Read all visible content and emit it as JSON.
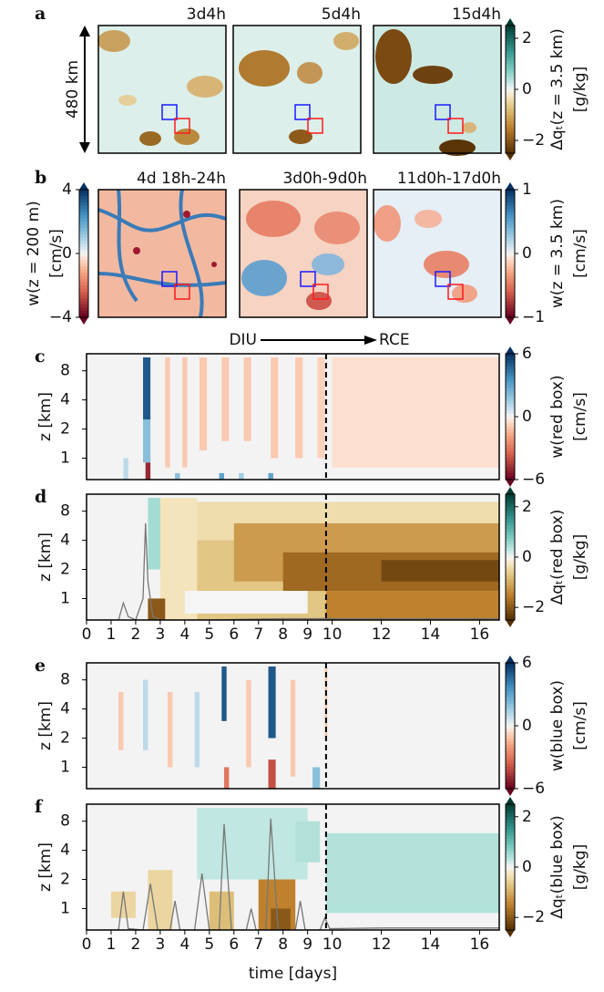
{
  "chart_data": [
    {
      "type": "map",
      "panel": "a",
      "titles": [
        "3d4h",
        "5d4h",
        "15d4h"
      ],
      "scale_label": "480 km",
      "colorbars": [
        {
          "side": "right",
          "colormap": "BrBG",
          "lim": [
            -2.5,
            2.5
          ],
          "ticks": [
            2,
            0,
            {
              "value": -2,
              "label": "−2"
            }
          ],
          "label": "Δqₜ(z = 3.5 km)",
          "units": "[g/kg]"
        }
      ]
    },
    {
      "type": "map",
      "panel": "b",
      "titles": [
        "4d 18h-24h",
        "3d0h-9d0h",
        "11d0h-17d0h"
      ],
      "colorbars": [
        {
          "side": "left",
          "colormap": "RdBu",
          "lim": [
            -4,
            4
          ],
          "ticks": [
            4,
            0,
            {
              "value": -4,
              "label": "−4"
            }
          ],
          "label": "w(z = 200 m)",
          "units": "[cm/s]"
        },
        {
          "side": "right",
          "colormap": "RdBu",
          "lim": [
            -1,
            1
          ],
          "ticks": [
            1,
            0,
            {
              "value": -1,
              "label": "−1"
            }
          ],
          "label": "w(z = 3.5 km)",
          "units": "[cm/s]"
        }
      ],
      "annotations": [
        "DIU",
        "RCE"
      ]
    },
    {
      "type": "heatmap",
      "panel": "c",
      "ylabel": "z [km]",
      "yscale": "log",
      "ylim": [
        0.6,
        12
      ],
      "yticks": [
        1,
        2,
        4,
        8
      ],
      "xlim": [
        0,
        16.8
      ],
      "vline": 9.75,
      "colorbar": {
        "colormap": "RdBu",
        "lim": [
          -6,
          6
        ],
        "ticks": [
          6,
          0,
          {
            "value": -6,
            "label": "−6"
          }
        ],
        "label": "w(red box)",
        "units": "[cm/s]"
      },
      "cells": [
        {
          "t": [
            10,
            16.8
          ],
          "z": [
            0.8,
            11
          ],
          "value": -0.5
        },
        {
          "t": [
            3.2,
            3.4
          ],
          "z": [
            0.8,
            11
          ],
          "value": -1
        },
        {
          "t": [
            3.9,
            4.1
          ],
          "z": [
            0.8,
            11
          ],
          "value": -1
        },
        {
          "t": [
            4.6,
            4.9
          ],
          "z": [
            1.2,
            11
          ],
          "value": -1
        },
        {
          "t": [
            5.5,
            5.8
          ],
          "z": [
            1.5,
            11
          ],
          "value": -1
        },
        {
          "t": [
            6.4,
            6.7
          ],
          "z": [
            1.5,
            11
          ],
          "value": -1
        },
        {
          "t": [
            7.5,
            7.8
          ],
          "z": [
            1,
            11
          ],
          "value": -1
        },
        {
          "t": [
            8.5,
            8.8
          ],
          "z": [
            1,
            11
          ],
          "value": -1
        },
        {
          "t": [
            9.4,
            9.7
          ],
          "z": [
            1,
            11
          ],
          "value": -0.8
        },
        {
          "t": [
            2.3,
            2.6
          ],
          "z": [
            2.5,
            11
          ],
          "value": 5
        },
        {
          "t": [
            2.3,
            2.6
          ],
          "z": [
            0.9,
            2.5
          ],
          "value": 2
        },
        {
          "t": [
            2.4,
            2.6
          ],
          "z": [
            0.5,
            0.9
          ],
          "value": -5
        },
        {
          "t": [
            3.6,
            3.8
          ],
          "z": [
            0.5,
            0.7
          ],
          "value": 2
        },
        {
          "t": [
            5.4,
            5.6
          ],
          "z": [
            0.5,
            0.7
          ],
          "value": 3
        },
        {
          "t": [
            6.2,
            6.4
          ],
          "z": [
            0.5,
            0.7
          ],
          "value": 1.5
        },
        {
          "t": [
            7.4,
            7.6
          ],
          "z": [
            0.5,
            0.7
          ],
          "value": 3
        },
        {
          "t": [
            1.5,
            1.7
          ],
          "z": [
            0.6,
            1
          ],
          "value": 1
        }
      ]
    },
    {
      "type": "heatmap",
      "panel": "d",
      "ylabel": "z [km]",
      "yscale": "log",
      "ylim": [
        0.6,
        12
      ],
      "yticks": [
        1,
        2,
        4,
        8
      ],
      "xlim": [
        0,
        16.8
      ],
      "xticks": [
        0,
        1,
        2,
        3,
        4,
        5,
        6,
        7,
        8,
        9,
        10,
        12,
        14,
        16
      ],
      "vline": 9.75,
      "colorbar": {
        "colormap": "BrBG",
        "lim": [
          -2.5,
          2.5
        ],
        "ticks": [
          2,
          0,
          {
            "value": -2,
            "label": "−2"
          }
        ],
        "label": "Δqₜ(red box)",
        "units": "[g/kg]"
      },
      "cells": [
        {
          "t": [
            2.5,
            3.2
          ],
          "z": [
            2,
            11
          ],
          "value": 0.5
        },
        {
          "t": [
            3,
            4.5
          ],
          "z": [
            0.5,
            11
          ],
          "value": -0.3
        },
        {
          "t": [
            4.5,
            16.8
          ],
          "z": [
            4,
            10
          ],
          "value": -0.4
        },
        {
          "t": [
            4.5,
            9.75
          ],
          "z": [
            0.5,
            4
          ],
          "value": -0.7
        },
        {
          "t": [
            6,
            16.8
          ],
          "z": [
            1.5,
            6
          ],
          "value": -1.2
        },
        {
          "t": [
            8,
            16.8
          ],
          "z": [
            1.2,
            3
          ],
          "value": -1.8
        },
        {
          "t": [
            12,
            16.8
          ],
          "z": [
            1.5,
            2.5
          ],
          "value": -2.2
        },
        {
          "t": [
            4,
            9
          ],
          "z": [
            0.7,
            1.2
          ],
          "value": 0
        },
        {
          "t": [
            9.75,
            16.8
          ],
          "z": [
            0.5,
            1.2
          ],
          "value": -1.5
        },
        {
          "t": [
            2.5,
            3.2
          ],
          "z": [
            0.5,
            1
          ],
          "value": -2
        }
      ],
      "line": {
        "color": "#777777",
        "x": [
          0.7,
          1.3,
          1.5,
          1.7,
          2.0,
          2.3,
          2.4,
          2.5,
          2.7,
          3.0,
          5,
          8,
          12,
          16.8
        ],
        "values": [
          0.6,
          0.6,
          0.9,
          0.65,
          0.6,
          1,
          6,
          1.5,
          0.65,
          0.6,
          0.6,
          0.62,
          0.62,
          0.62
        ]
      }
    },
    {
      "type": "heatmap",
      "panel": "e",
      "ylabel": "z [km]",
      "yscale": "log",
      "ylim": [
        0.6,
        12
      ],
      "yticks": [
        1,
        2,
        4,
        8
      ],
      "xlim": [
        0,
        16.8
      ],
      "vline": 9.75,
      "colorbar": {
        "colormap": "RdBu",
        "lim": [
          -6,
          6
        ],
        "ticks": [
          6,
          0,
          {
            "value": -6,
            "label": "−6"
          }
        ],
        "label": "w(blue box)",
        "units": "[cm/s]"
      },
      "cells": [
        {
          "t": [
            1.3,
            1.5
          ],
          "z": [
            1.5,
            6
          ],
          "value": -1
        },
        {
          "t": [
            2.3,
            2.5
          ],
          "z": [
            1.5,
            8
          ],
          "value": 1
        },
        {
          "t": [
            3.3,
            3.5
          ],
          "z": [
            1,
            6
          ],
          "value": -1
        },
        {
          "t": [
            4.4,
            4.6
          ],
          "z": [
            1,
            6
          ],
          "value": 1
        },
        {
          "t": [
            6.5,
            6.7
          ],
          "z": [
            1,
            8
          ],
          "value": -1
        },
        {
          "t": [
            8.3,
            8.5
          ],
          "z": [
            0.8,
            8
          ],
          "value": -1
        },
        {
          "t": [
            9.7,
            9.8
          ],
          "z": [
            2,
            11
          ],
          "value": -1
        },
        {
          "t": [
            5.5,
            5.7
          ],
          "z": [
            3,
            11
          ],
          "value": 5
        },
        {
          "t": [
            7.4,
            7.7
          ],
          "z": [
            2,
            11
          ],
          "value": 5
        },
        {
          "t": [
            7.4,
            7.7
          ],
          "z": [
            0.6,
            1.2
          ],
          "value": -4
        },
        {
          "t": [
            5.6,
            5.8
          ],
          "z": [
            0.6,
            1
          ],
          "value": -3
        },
        {
          "t": [
            9.2,
            9.5
          ],
          "z": [
            0.6,
            1
          ],
          "value": 2
        }
      ]
    },
    {
      "type": "heatmap",
      "panel": "f",
      "ylabel": "z [km]",
      "yscale": "log",
      "ylim": [
        0.6,
        12
      ],
      "yticks": [
        1,
        2,
        4,
        8
      ],
      "xlim": [
        0,
        16.8
      ],
      "xticks": [
        0,
        1,
        2,
        3,
        4,
        5,
        6,
        7,
        8,
        9,
        10,
        12,
        14,
        16
      ],
      "xlabel": "time [days]",
      "vline": 9.75,
      "colorbar": {
        "colormap": "BrBG",
        "lim": [
          -2.5,
          2.5
        ],
        "ticks": [
          2,
          0,
          {
            "value": -2,
            "label": "−2"
          }
        ],
        "label": "Δqₜ(blue box)",
        "units": "[g/kg]"
      },
      "cells": [
        {
          "t": [
            4.5,
            9
          ],
          "z": [
            2,
            11
          ],
          "value": 0.3
        },
        {
          "t": [
            8.5,
            9.5
          ],
          "z": [
            3,
            8
          ],
          "value": 0.4
        },
        {
          "t": [
            9.75,
            16.8
          ],
          "z": [
            0.9,
            6
          ],
          "value": 0.4
        },
        {
          "t": [
            2.5,
            3.5
          ],
          "z": [
            0.5,
            2.5
          ],
          "value": -0.5
        },
        {
          "t": [
            5,
            6
          ],
          "z": [
            0.5,
            1.5
          ],
          "value": -0.8
        },
        {
          "t": [
            7,
            8.5
          ],
          "z": [
            0.5,
            2
          ],
          "value": -1.5
        },
        {
          "t": [
            7.5,
            8.3
          ],
          "z": [
            0.5,
            1
          ],
          "value": -2
        },
        {
          "t": [
            1,
            2
          ],
          "z": [
            0.8,
            1.5
          ],
          "value": -0.5
        }
      ],
      "line": {
        "color": "#777777",
        "x": [
          0.7,
          1.3,
          1.5,
          1.7,
          2.3,
          2.6,
          2.9,
          3.4,
          3.6,
          3.8,
          4.4,
          4.7,
          5.0,
          5.4,
          5.6,
          5.9,
          6.5,
          6.7,
          6.9,
          7.3,
          7.5,
          7.8,
          8.5,
          8.7,
          8.9,
          9.5,
          9.7,
          9.9,
          12,
          16.8
        ],
        "values": [
          0.6,
          0.6,
          1.5,
          0.62,
          0.6,
          1.8,
          0.6,
          0.6,
          1.2,
          0.6,
          0.6,
          2.3,
          0.6,
          0.6,
          7.5,
          0.6,
          0.6,
          1,
          0.6,
          0.6,
          8.5,
          0.6,
          0.6,
          1.2,
          0.6,
          0.6,
          0.8,
          0.62,
          0.63,
          0.63
        ]
      }
    }
  ]
}
